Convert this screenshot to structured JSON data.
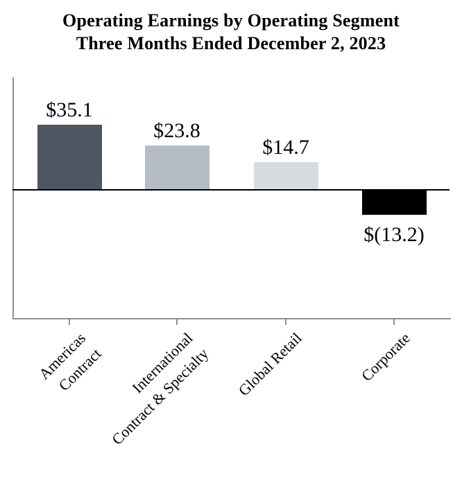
{
  "title": {
    "line1": "Operating Earnings by Operating Segment",
    "line2": "Three Months Ended December 2, 2023"
  },
  "chart_data": {
    "type": "bar",
    "title": "Operating Earnings by Operating Segment",
    "subtitle": "Three Months Ended December 2, 2023",
    "categories": [
      "Americas Contract",
      "International Contract & Specialty",
      "Global Retail",
      "Corporate"
    ],
    "category_display_lines": [
      [
        "Americas",
        "Contract"
      ],
      [
        "International",
        "Contract & Specialty"
      ],
      [
        "Global Retail"
      ],
      [
        "Corporate"
      ]
    ],
    "values": [
      35.1,
      23.8,
      14.7,
      -13.2
    ],
    "value_labels": [
      "$35.1",
      "$23.8",
      "$14.7",
      "$(13.2)"
    ],
    "bar_colors": [
      "#4d5662",
      "#b4bdc6",
      "#d7dce0",
      "#000000"
    ],
    "axis_color": "#8e8e8e",
    "zero_line_color": "#000000",
    "text_color": "#000000",
    "xlabel": "",
    "ylabel": "",
    "ylim": [
      -70,
      62
    ],
    "grid": false,
    "legend": "none"
  }
}
